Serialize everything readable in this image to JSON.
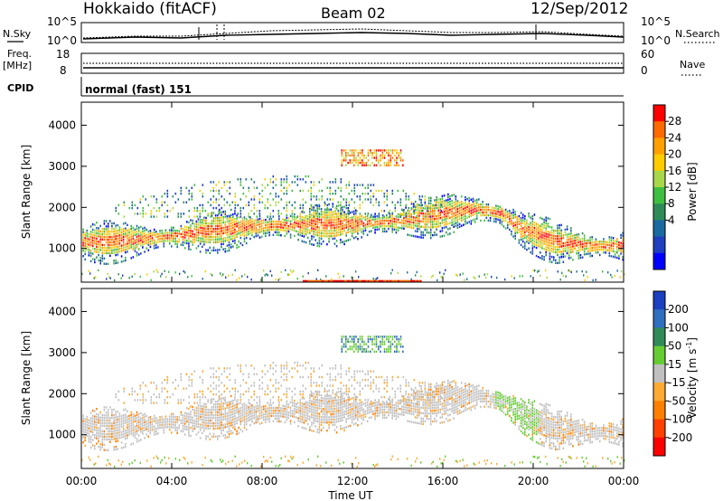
{
  "header": {
    "station": "Hokkaido (fitACF)",
    "beam": "Beam 02",
    "date": "12/Sep/2012"
  },
  "strips": {
    "nsky_label": "N.Sky",
    "nsky_ticks": [
      "10^5",
      "10^0"
    ],
    "nsearch_label": "N.Search",
    "nsearch_ticks": [
      "10^5",
      "10^0"
    ],
    "freq_label": "Freq.",
    "freq_unit": "[MHz]",
    "freq_ticks": [
      "18",
      "8"
    ],
    "nave_label": "Nave",
    "nave_ticks": [
      "60",
      "0"
    ],
    "cpid_label": "CPID",
    "cpid_value": "normal (fast) 151"
  },
  "chart_data": [
    {
      "type": "heatmap",
      "name": "power-panel",
      "ylabel": "Slant Range [km]",
      "ylim": [
        180,
        4560
      ],
      "yticks": [
        "4000",
        "3000",
        "2000",
        "1000"
      ],
      "x": [
        "00:00",
        "04:00",
        "08:00",
        "12:00",
        "16:00",
        "20:00",
        "00:00"
      ],
      "colorbar": {
        "label": "Power [dB]",
        "ticks": [
          "28",
          "24",
          "20",
          "16",
          "12",
          "8",
          "4"
        ],
        "colors": [
          "#ff0000",
          "#ff6a00",
          "#ffa000",
          "#ffcc00",
          "#a8d84a",
          "#3fbf3f",
          "#2e8b57",
          "#1a6aa0",
          "#1f3fbf",
          "#0000ff"
        ]
      },
      "band_center_km": [
        {
          "t": 0,
          "r": 1180
        },
        {
          "t": 2,
          "r": 1230
        },
        {
          "t": 4,
          "r": 1330
        },
        {
          "t": 6,
          "r": 1480
        },
        {
          "t": 8,
          "r": 1580
        },
        {
          "t": 10,
          "r": 1620
        },
        {
          "t": 12,
          "r": 1620
        },
        {
          "t": 14,
          "r": 1700
        },
        {
          "t": 16,
          "r": 1880
        },
        {
          "t": 17.5,
          "r": 1980
        },
        {
          "t": 18.5,
          "r": 1900
        },
        {
          "t": 19.5,
          "r": 1500
        },
        {
          "t": 21,
          "r": 1200
        },
        {
          "t": 22.5,
          "r": 1100
        },
        {
          "t": 24,
          "r": 1100
        }
      ]
    },
    {
      "type": "heatmap",
      "name": "velocity-panel",
      "ylabel": "Slant Range [km]",
      "xlabel": "Time UT",
      "ylim": [
        180,
        4560
      ],
      "yticks": [
        "4000",
        "3000",
        "2000",
        "1000"
      ],
      "x": [
        "00:00",
        "04:00",
        "08:00",
        "12:00",
        "16:00",
        "20:00",
        "00:00"
      ],
      "colorbar": {
        "label": "Velocity [m s",
        "label_sup": "-1",
        "label_end": "]",
        "ticks": [
          "200",
          "100",
          "50",
          "15",
          "-15",
          "-50",
          "-100",
          "-200"
        ],
        "colors": [
          "#1a3fbf",
          "#2e6fbf",
          "#2e8b57",
          "#66cc33",
          "#c0c0c0",
          "#ffaa33",
          "#ff7f00",
          "#ff4000",
          "#ff0000"
        ]
      }
    }
  ]
}
